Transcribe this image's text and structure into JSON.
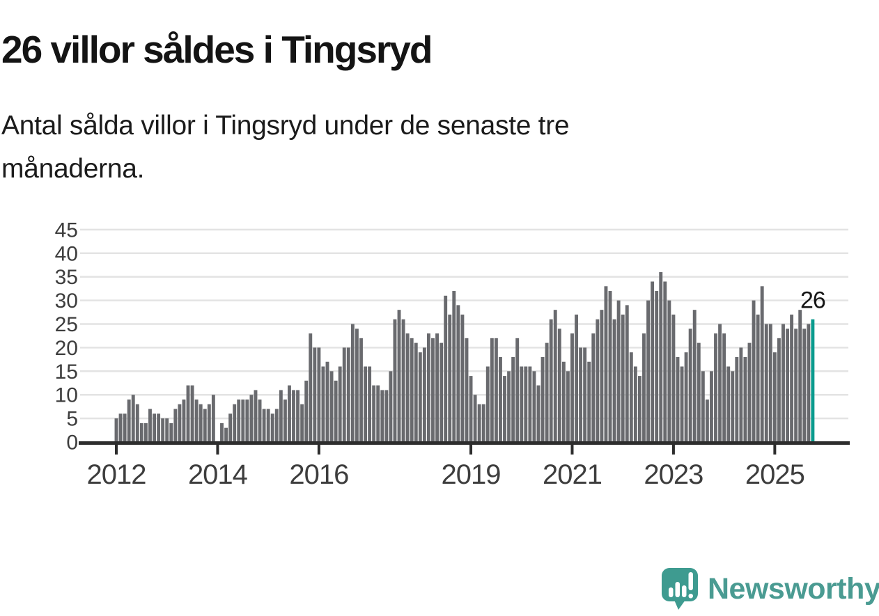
{
  "header": {
    "title": "26 villor såldes i Tingsryd",
    "subtitle_line1": "Antal sålda villor i Tingsryd under de senaste tre",
    "subtitle_line2": "månaderna."
  },
  "chart_data": {
    "type": "bar",
    "title": "26 villor såldes i Tingsryd",
    "x_unit": "month",
    "x_start": "2012-01",
    "x_end": "2025-10",
    "values": [
      5,
      6,
      6,
      9,
      10,
      8,
      4,
      4,
      7,
      6,
      6,
      5,
      5,
      4,
      7,
      8,
      9,
      12,
      12,
      9,
      8,
      7,
      8,
      10,
      0,
      4,
      3,
      6,
      8,
      9,
      9,
      9,
      10,
      11,
      9,
      7,
      7,
      6,
      7,
      11,
      9,
      12,
      11,
      11,
      8,
      13,
      23,
      20,
      20,
      16,
      17,
      15,
      13,
      16,
      20,
      20,
      25,
      24,
      22,
      16,
      16,
      12,
      12,
      11,
      11,
      15,
      26,
      28,
      26,
      23,
      22,
      21,
      19,
      20,
      23,
      22,
      23,
      21,
      31,
      27,
      32,
      29,
      27,
      22,
      14,
      10,
      8,
      8,
      16,
      22,
      22,
      18,
      14,
      15,
      18,
      22,
      16,
      16,
      16,
      15,
      12,
      18,
      21,
      26,
      28,
      24,
      17,
      15,
      23,
      27,
      20,
      20,
      17,
      23,
      26,
      28,
      33,
      32,
      26,
      30,
      27,
      29,
      19,
      16,
      14,
      23,
      30,
      34,
      32,
      36,
      34,
      30,
      27,
      18,
      16,
      19,
      24,
      28,
      21,
      15,
      9,
      15,
      23,
      25,
      23,
      16,
      15,
      18,
      20,
      18,
      21,
      30,
      27,
      33,
      25,
      25,
      19,
      22,
      25,
      24,
      27,
      24,
      28,
      24,
      25,
      26
    ],
    "highlight_last_bar": true,
    "highlight_value": 26,
    "annotation_text": "26",
    "bar_color": "#696a6e",
    "highlight_color": "#0a9b8e",
    "grid": true,
    "gridline_color": "#e3e3e3",
    "axis_color": "#2d2d2d",
    "axis_label_color": "#3d3d3d",
    "annotation_color": "#161616",
    "ylim": [
      0,
      45
    ],
    "ytick_labels": [
      0,
      5,
      10,
      15,
      20,
      25,
      30,
      35,
      40,
      45
    ],
    "xtick_labels": [
      2012,
      2014,
      2016,
      2019,
      2021,
      2023,
      2025
    ],
    "legend": "none",
    "xlabel": "",
    "ylabel": ""
  },
  "footer": {
    "brand": "Newsworthy",
    "logo_icon": "newsworthy-speech-bubble-bar-chart-icon",
    "brand_color": "#4a9b92",
    "icon_color": "#3e9b90"
  }
}
